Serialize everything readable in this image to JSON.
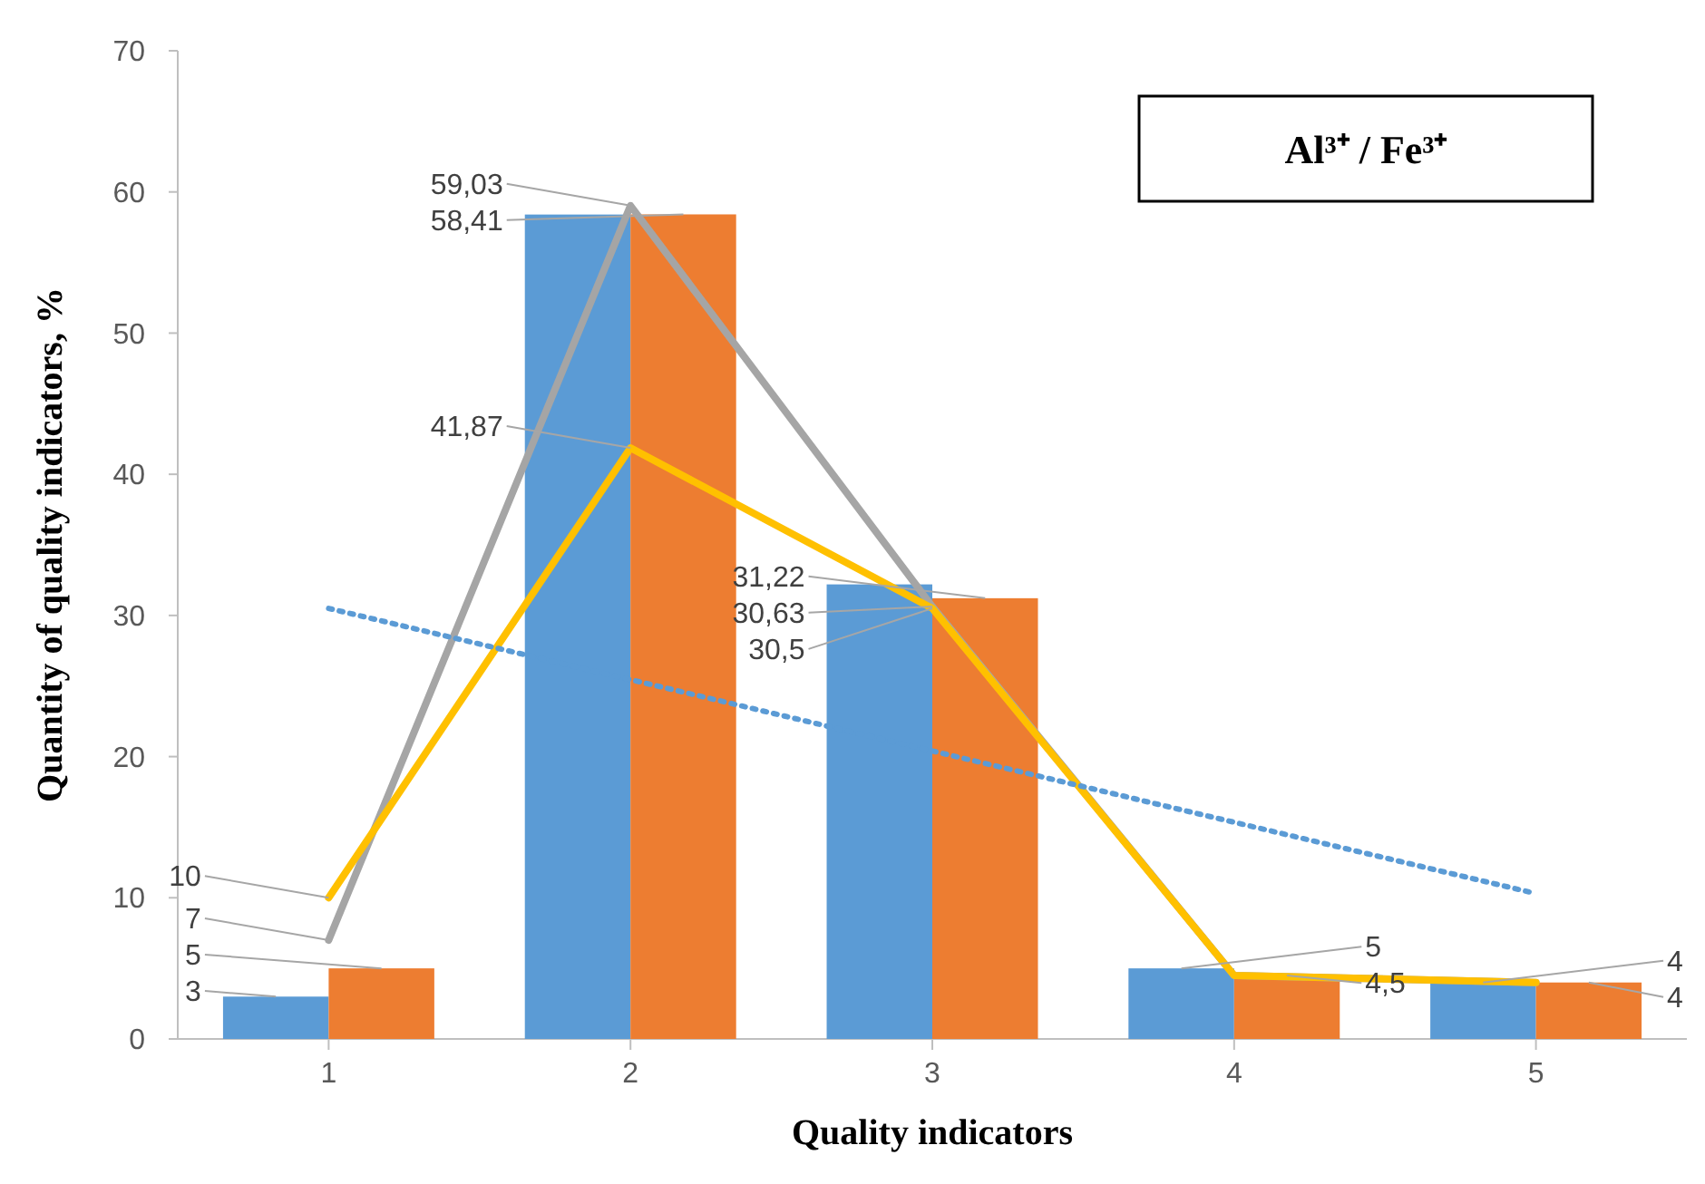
{
  "chart_data": {
    "type": "bar",
    "xlabel": "Quality indicators",
    "ylabel": "Quantity of quality indicators, %",
    "categories": [
      "1",
      "2",
      "3",
      "4",
      "5"
    ],
    "series": [
      {
        "color": "#5b9bd5",
        "values": [
          3,
          58.4,
          32.2,
          5,
          4
        ],
        "value_labels": [
          "3",
          null,
          null,
          "5",
          "4"
        ]
      },
      {
        "color": "#ed7d31",
        "values": [
          5,
          58.41,
          31.22,
          4.5,
          4
        ],
        "value_labels": [
          "5",
          "58,41",
          "31,22",
          "4,5",
          "4"
        ]
      },
      {
        "type": "line",
        "color": "#a5a5a5",
        "values": [
          7,
          59.03,
          30.63,
          4.5,
          4
        ],
        "value_labels": [
          "7",
          "59,03",
          "30,63",
          null,
          null
        ]
      },
      {
        "type": "line",
        "color": "#ffc000",
        "values": [
          10,
          41.87,
          30.5,
          4.5,
          4
        ],
        "value_labels": [
          "10",
          "41,87",
          "30,5",
          null,
          null
        ]
      },
      {
        "type": "line",
        "color": "#5b9bd5",
        "x": [
          "1",
          "5"
        ],
        "values": [
          30.5,
          10.3
        ],
        "line_style": "dotted"
      }
    ],
    "ylim": [
      0,
      70
    ],
    "yticks": [
      0,
      10,
      20,
      30,
      40,
      50,
      60,
      70
    ],
    "grid": false,
    "annotations": [
      "Al³⁺ /  Fe³⁺"
    ]
  }
}
